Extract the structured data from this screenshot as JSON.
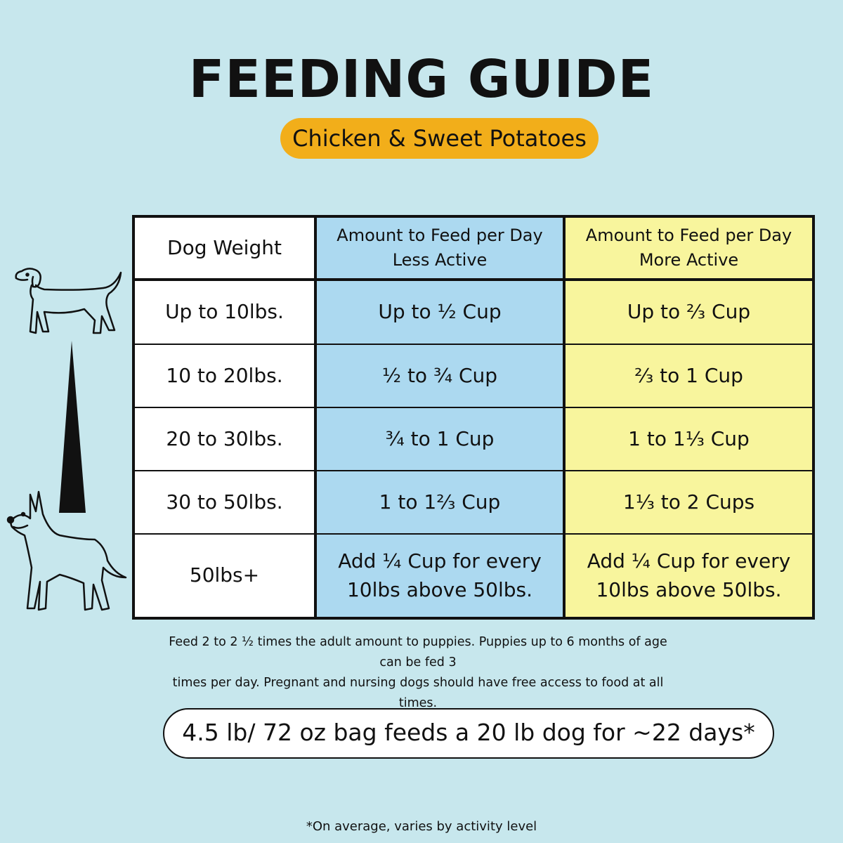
{
  "title": "FEEDING GUIDE",
  "subtitle": "Chicken & Sweet Potatoes",
  "colors": {
    "background": "#c7e7ed",
    "pill": "#f2ae1a",
    "less_active": "#acd9f0",
    "more_active": "#f8f59d"
  },
  "table": {
    "headers": {
      "weight": "Dog Weight",
      "less_line1": "Amount to Feed per Day",
      "less_line2": "Less Active",
      "more_line1": "Amount to Feed per Day",
      "more_line2": "More Active"
    },
    "rows": [
      {
        "weight": "Up to 10lbs.",
        "less": "Up to ½ Cup",
        "more": "Up to ⅔ Cup"
      },
      {
        "weight": "10 to 20lbs.",
        "less": "½ to ¾ Cup",
        "more": "⅔ to 1 Cup"
      },
      {
        "weight": "20 to 30lbs.",
        "less": "¾ to 1 Cup",
        "more": "1 to 1⅓ Cup"
      },
      {
        "weight": "30 to 50lbs.",
        "less": "1 to 1⅔ Cup",
        "more": "1⅓ to 2 Cups"
      },
      {
        "weight": "50lbs+",
        "less_line1": "Add ¼ Cup for every",
        "less_line2": "10lbs above 50lbs.",
        "more_line1": "Add ¼ Cup for every",
        "more_line2": "10lbs above 50lbs."
      }
    ]
  },
  "note_line1": "Feed 2 to 2 ½ times the adult amount to puppies. Puppies up to 6 months of age can be fed 3",
  "note_line2": "times per day. Pregnant and nursing dogs should have free access to food at all times.",
  "bag_text": "4.5 lb/ 72 oz bag feeds a 20 lb dog for ~22 days*",
  "footnote": "*On average, varies by activity level"
}
